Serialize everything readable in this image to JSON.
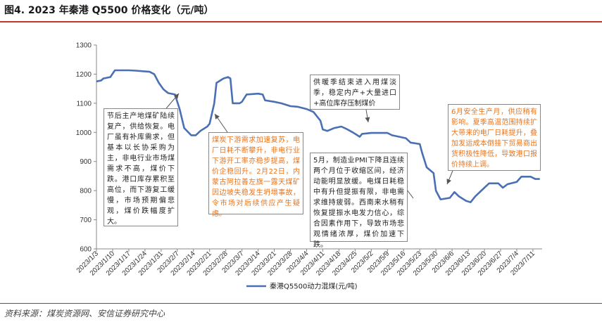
{
  "figure_title": "图4. 2023 年秦港 Q5500 价格变化（元/吨）",
  "source": "资料来源：煤炭资源网、安信证券研究中心",
  "colors": {
    "line": "#4a6fb3",
    "black_text": "#222222",
    "orange_text": "#e8741c",
    "rule": "#c0392b"
  },
  "annotations": [
    {
      "id": "a1",
      "color": "black",
      "text": "节后主产地煤矿陆续复产，供给恢复。电厂虽有补库需求，但基本以长协采购为主，非电行业市场煤需求不高，煤价下跌。港口库存累积至高位，而下游复工缓慢，市场预期偏悲观，煤价跌幅度扩大。"
    },
    {
      "id": "a2",
      "color": "orange",
      "text": "煤炭下游需求加速复苏，电厂日耗不断攀升，非电行业下游开工率亦稳步提高，煤价企稳回升。2月22日，内蒙古阿拉善左旗一露天煤矿因边坡失稳发生坍塌事故，令市场对后续供应产生疑虑。"
    },
    {
      "id": "a3",
      "color": "black",
      "text": "供暖季结束进入用煤淡季，稳定内产+大量进口+高位库存压制煤价"
    },
    {
      "id": "a4",
      "color": "black",
      "text": "5月，制造业PMI下降且连续两个月位于收缩区间，经济动能明显放缓。电煤日耗稳中有升但提振有限，非电需求维持疲弱。西南来水稍有恢复提振水电发力信心，综合因素作用下，导致市场悲观情绪浓厚，煤价加速下跌。"
    },
    {
      "id": "a5",
      "color": "orange",
      "text": "6月安全生产月，供应稍有影响。夏季高温范围持续扩大带来的电厂日耗提升，叠加发运成本倒挂下贸易商出货积极性降低，导致港口报价持续上调。"
    }
  ],
  "chart_data": {
    "type": "line",
    "title": "",
    "xlabel": "",
    "ylabel": "",
    "ylim": [
      600,
      1300
    ],
    "yticks": [
      600,
      700,
      800,
      900,
      1000,
      1100,
      1200,
      1300
    ],
    "grid": false,
    "legend_position": "bottom",
    "x_tick_labels": [
      "2023/1/3",
      "2023/1/10",
      "2023/1/17",
      "2023/1/24",
      "2023/1/31",
      "2023/2/7",
      "2023/2/14",
      "2023/2/21",
      "2023/2/28",
      "2023/3/7",
      "2023/3/14",
      "2023/3/21",
      "2023/3/28",
      "2023/4/4",
      "2023/4/11",
      "2023/4/18",
      "2023/4/25",
      "2023/5/2",
      "2023/5/9",
      "2023/5/16",
      "2023/5/23",
      "2023/5/30",
      "2023/6/6",
      "2023/6/13",
      "2023/6/20",
      "2023/6/27",
      "2023/7/4",
      "2023/7/11"
    ],
    "series": [
      {
        "name": "秦港Q5500动力混煤(元/吨)",
        "points": [
          [
            "2023/1/3",
            1175
          ],
          [
            "2023/1/5",
            1178
          ],
          [
            "2023/1/6",
            1185
          ],
          [
            "2023/1/9",
            1190
          ],
          [
            "2023/1/11",
            1213
          ],
          [
            "2023/1/13",
            1213
          ],
          [
            "2023/1/17",
            1213
          ],
          [
            "2023/1/20",
            1212
          ],
          [
            "2023/1/23",
            1210
          ],
          [
            "2023/1/26",
            1208
          ],
          [
            "2023/1/28",
            1200
          ],
          [
            "2023/1/30",
            1170
          ],
          [
            "2023/2/1",
            1148
          ],
          [
            "2023/2/3",
            1135
          ],
          [
            "2023/2/6",
            1130
          ],
          [
            "2023/2/8",
            1080
          ],
          [
            "2023/2/10",
            1015
          ],
          [
            "2023/2/13",
            990
          ],
          [
            "2023/2/15",
            990
          ],
          [
            "2023/2/17",
            1005
          ],
          [
            "2023/2/20",
            1020
          ],
          [
            "2023/2/21",
            1030
          ],
          [
            "2023/2/23",
            1100
          ],
          [
            "2023/2/24",
            1170
          ],
          [
            "2023/2/27",
            1185
          ],
          [
            "2023/3/1",
            1190
          ],
          [
            "2023/3/2",
            1185
          ],
          [
            "2023/3/3",
            1100
          ],
          [
            "2023/3/6",
            1100
          ],
          [
            "2023/3/7",
            1105
          ],
          [
            "2023/3/9",
            1130
          ],
          [
            "2023/3/14",
            1133
          ],
          [
            "2023/3/16",
            1130
          ],
          [
            "2023/3/17",
            1110
          ],
          [
            "2023/3/21",
            1105
          ],
          [
            "2023/3/24",
            1100
          ],
          [
            "2023/3/28",
            1090
          ],
          [
            "2023/3/31",
            1088
          ],
          [
            "2023/4/4",
            1080
          ],
          [
            "2023/4/7",
            1070
          ],
          [
            "2023/4/10",
            1040
          ],
          [
            "2023/4/11",
            1010
          ],
          [
            "2023/4/13",
            1005
          ],
          [
            "2023/4/16",
            1015
          ],
          [
            "2023/4/19",
            1020
          ],
          [
            "2023/4/21",
            1013
          ],
          [
            "2023/4/24",
            1000
          ],
          [
            "2023/4/27",
            985
          ],
          [
            "2023/4/28",
            995
          ],
          [
            "2023/5/2",
            998
          ],
          [
            "2023/5/9",
            998
          ],
          [
            "2023/5/11",
            990
          ],
          [
            "2023/5/14",
            985
          ],
          [
            "2023/5/17",
            980
          ],
          [
            "2023/5/19",
            965
          ],
          [
            "2023/5/23",
            960
          ],
          [
            "2023/5/24",
            930
          ],
          [
            "2023/5/26",
            880
          ],
          [
            "2023/5/29",
            860
          ],
          [
            "2023/5/30",
            800
          ],
          [
            "2023/6/1",
            770
          ],
          [
            "2023/6/5",
            775
          ],
          [
            "2023/6/7",
            795
          ],
          [
            "2023/6/9",
            780
          ],
          [
            "2023/6/12",
            765
          ],
          [
            "2023/6/14",
            760
          ],
          [
            "2023/6/16",
            780
          ],
          [
            "2023/6/20",
            810
          ],
          [
            "2023/6/22",
            825
          ],
          [
            "2023/6/26",
            825
          ],
          [
            "2023/6/28",
            810
          ],
          [
            "2023/6/30",
            822
          ],
          [
            "2023/7/4",
            830
          ],
          [
            "2023/7/6",
            848
          ],
          [
            "2023/7/10",
            848
          ],
          [
            "2023/7/12",
            840
          ],
          [
            "2023/7/14",
            840
          ]
        ]
      }
    ]
  }
}
